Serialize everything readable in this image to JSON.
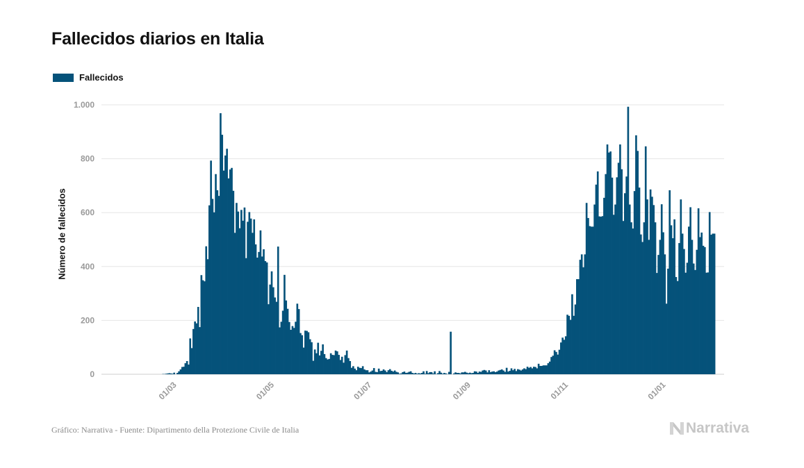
{
  "title": "Fallecidos diarios en Italia",
  "footer": "Gráfico: Narrativa - Fuente: Dipartimento della Protezione Civile de Italia",
  "brand": {
    "name": "Narrativa",
    "icon": "narrativa-logo-icon"
  },
  "colors": {
    "bar": "#05527a",
    "grid": "#e6e6e6",
    "tick": "#999999",
    "axis_title": "#111111"
  },
  "chart_data": {
    "type": "bar",
    "title": "Fallecidos diarios en Italia",
    "xlabel": "",
    "ylabel": "Número de fallecidos",
    "legend": [
      "Fallecidos"
    ],
    "legend_position": "top-left",
    "grid": true,
    "ylim": [
      0,
      1000
    ],
    "y_ticks": [
      0,
      200,
      400,
      600,
      800,
      1000
    ],
    "y_tick_labels": [
      "0",
      "200",
      "400",
      "600",
      "800",
      "1.000"
    ],
    "x_start_date": "2020-02-01",
    "x_ticks": [
      "2020-03-01",
      "2020-05-01",
      "2020-07-01",
      "2020-09-01",
      "2020-11-01",
      "2021-01-01"
    ],
    "x_tick_labels": [
      "01/03",
      "01/05",
      "01/07",
      "01/09",
      "01/11",
      "01/01"
    ],
    "series": [
      {
        "name": "Fallecidos",
        "values": [
          0,
          0,
          0,
          0,
          0,
          0,
          0,
          0,
          0,
          0,
          0,
          0,
          0,
          0,
          0,
          0,
          0,
          0,
          0,
          0,
          0,
          1,
          1,
          2,
          3,
          4,
          3,
          2,
          6,
          0,
          5,
          11,
          18,
          27,
          28,
          41,
          49,
          36,
          133,
          97,
          168,
          196,
          189,
          250,
          175,
          368,
          349,
          345,
          475,
          427,
          627,
          793,
          651,
          601,
          743,
          683,
          662,
          969,
          889,
          756,
          812,
          837,
          727,
          760,
          766,
          681,
          525,
          636,
          604,
          542,
          610,
          570,
          619,
          431,
          566,
          602,
          578,
          525,
          575,
          482,
          433,
          454,
          534,
          437,
          464,
          420,
          415,
          260,
          333,
          382,
          323,
          285,
          269,
          474,
          174,
          195,
          236,
          369,
          274,
          243,
          194,
          165,
          179,
          172,
          195,
          262,
          242,
          153,
          145,
          99,
          162,
          161,
          156,
          130,
          119,
          50,
          92,
          78,
          117,
          70,
          87,
          111,
          75,
          60,
          55,
          57,
          78,
          72,
          71,
          88,
          85,
          72,
          53,
          65,
          43,
          71,
          88,
          60,
          49,
          24,
          30,
          21,
          15,
          28,
          24,
          23,
          30,
          18,
          15,
          15,
          7,
          10,
          14,
          23,
          9,
          8,
          21,
          12,
          13,
          18,
          14,
          8,
          15,
          19,
          13,
          10,
          14,
          9,
          7,
          2,
          3,
          8,
          10,
          5,
          6,
          9,
          11,
          5,
          3,
          5,
          2,
          4,
          3,
          5,
          11,
          2,
          12,
          4,
          8,
          8,
          3,
          11,
          1,
          4,
          12,
          6,
          2,
          5,
          3,
          1,
          9,
          158,
          0,
          3,
          7,
          5,
          5,
          3,
          7,
          7,
          9,
          6,
          4,
          6,
          4,
          5,
          11,
          10,
          5,
          10,
          9,
          14,
          16,
          14,
          7,
          15,
          8,
          10,
          11,
          8,
          10,
          14,
          16,
          18,
          14,
          9,
          24,
          10,
          13,
          22,
          15,
          20,
          12,
          19,
          17,
          14,
          18,
          22,
          19,
          28,
          24,
          27,
          22,
          28,
          27,
          22,
          39,
          31,
          31,
          33,
          33,
          33,
          41,
          47,
          64,
          69,
          89,
          83,
          73,
          91,
          118,
          136,
          128,
          141,
          221,
          217,
          202,
          297,
          217,
          259,
          353,
          353,
          425,
          445,
          397,
          445,
          636,
          580,
          550,
          548,
          548,
          630,
          704,
          753,
          586,
          585,
          587,
          655,
          743,
          853,
          823,
          827,
          730,
          592,
          630,
          731,
          785,
          853,
          761,
          569,
          672,
          734,
          993,
          630,
          564,
          541,
          680,
          887,
          829,
          693,
          519,
          491,
          564,
          846,
          649,
          499,
          686,
          659,
          628,
          564,
          376,
          443,
          499,
          631,
          527,
          445,
          262,
          392,
          683,
          553,
          505,
          575,
          361,
          346,
          487,
          649,
          522,
          465,
          377,
          414,
          548,
          620,
          499,
          411,
          387,
          462,
          616,
          509,
          526,
          477,
          472,
          377,
          378,
          602,
          518,
          522,
          522
        ]
      }
    ]
  }
}
